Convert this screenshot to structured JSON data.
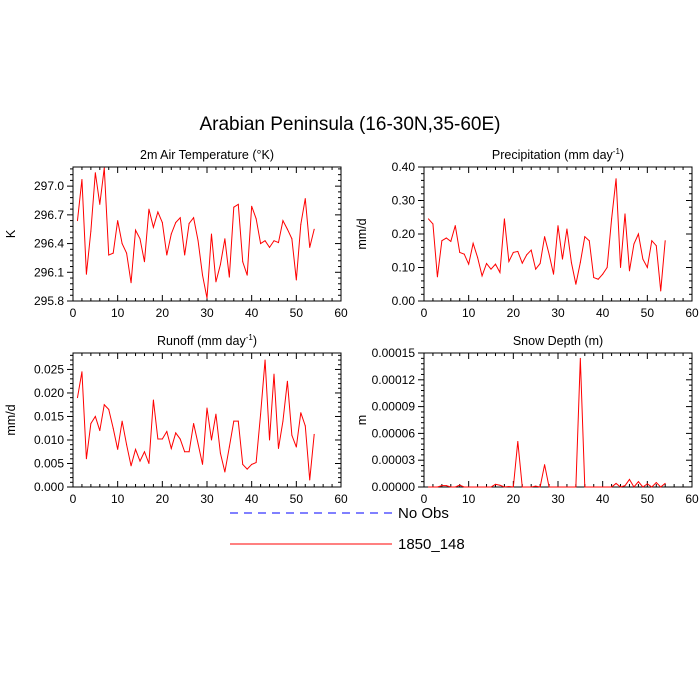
{
  "figure": {
    "title": "Arabian Peninsula (16-30N,35-60E)"
  },
  "colors": {
    "model": "#ff0000",
    "obs": "#0000ff",
    "axis": "#000000"
  },
  "legend": [
    {
      "label": "No Obs",
      "style": "dashed",
      "color": "#0000ff"
    },
    {
      "label": "1850_148",
      "style": "solid",
      "color": "#ff0000"
    }
  ],
  "chart_data": [
    {
      "type": "line",
      "title": "2m Air Temperature (°K)",
      "ylabel": "K",
      "xlim": [
        0,
        60
      ],
      "ylim": [
        295.8,
        297.2
      ],
      "xticks": [
        0,
        10,
        20,
        30,
        40,
        50,
        60
      ],
      "yticks": [
        "295.8",
        "296.1",
        "296.4",
        "296.7",
        "297.0"
      ],
      "legend": "bottom",
      "series": [
        {
          "name": "1850_148",
          "x": [
            1,
            2,
            3,
            4,
            5,
            6,
            7,
            8,
            9,
            10,
            11,
            12,
            13,
            14,
            15,
            16,
            17,
            18,
            19,
            20,
            21,
            22,
            23,
            24,
            25,
            26,
            27,
            28,
            29,
            30,
            31,
            32,
            33,
            34,
            35,
            36,
            37,
            38,
            39,
            40,
            41,
            42,
            43,
            44,
            45,
            46,
            47,
            48,
            49,
            50,
            51,
            52,
            53,
            54
          ],
          "values": [
            296.64,
            297.07,
            296.08,
            296.53,
            297.14,
            296.81,
            297.19,
            296.28,
            296.3,
            296.64,
            296.4,
            296.3,
            295.99,
            296.54,
            296.45,
            296.21,
            296.76,
            296.57,
            296.73,
            296.62,
            296.28,
            296.5,
            296.62,
            296.67,
            296.28,
            296.61,
            296.67,
            296.43,
            296.07,
            295.83,
            296.5,
            296.0,
            296.18,
            296.45,
            296.05,
            296.78,
            296.81,
            296.21,
            296.07,
            296.79,
            296.66,
            296.4,
            296.43,
            296.36,
            296.43,
            296.41,
            296.64,
            296.55,
            296.45,
            296.02,
            296.6,
            296.87,
            296.36,
            296.55
          ]
        }
      ]
    },
    {
      "type": "line",
      "title": "Precipitation (mm day",
      "title_sup": "-1",
      "title_end": ")",
      "ylabel": "mm/d",
      "xlim": [
        0,
        60
      ],
      "ylim": [
        0,
        0.4
      ],
      "xticks": [
        0,
        10,
        20,
        30,
        40,
        50,
        60
      ],
      "yticks": [
        "0.00",
        "0.10",
        "0.20",
        "0.30",
        "0.40"
      ],
      "series": [
        {
          "name": "1850_148",
          "x": [
            1,
            2,
            3,
            4,
            5,
            6,
            7,
            8,
            9,
            10,
            11,
            12,
            13,
            14,
            15,
            16,
            17,
            18,
            19,
            20,
            21,
            22,
            23,
            24,
            25,
            26,
            27,
            28,
            29,
            30,
            31,
            32,
            33,
            34,
            35,
            36,
            37,
            38,
            39,
            40,
            41,
            42,
            43,
            44,
            45,
            46,
            47,
            48,
            49,
            50,
            51,
            52,
            53,
            54
          ],
          "values": [
            0.245,
            0.23,
            0.072,
            0.18,
            0.188,
            0.178,
            0.225,
            0.145,
            0.14,
            0.11,
            0.172,
            0.13,
            0.075,
            0.112,
            0.095,
            0.11,
            0.085,
            0.245,
            0.118,
            0.145,
            0.148,
            0.113,
            0.138,
            0.152,
            0.095,
            0.112,
            0.192,
            0.14,
            0.08,
            0.225,
            0.125,
            0.215,
            0.115,
            0.05,
            0.115,
            0.192,
            0.18,
            0.07,
            0.065,
            0.08,
            0.1,
            0.245,
            0.365,
            0.1,
            0.26,
            0.09,
            0.17,
            0.2,
            0.125,
            0.1,
            0.18,
            0.165,
            0.03,
            0.18
          ]
        }
      ]
    },
    {
      "type": "line",
      "title": "Runoff (mm day",
      "title_sup": "-1",
      "title_end": ")",
      "ylabel": "mm/d",
      "xlim": [
        0,
        60
      ],
      "ylim": [
        0,
        0.0285
      ],
      "xticks": [
        0,
        10,
        20,
        30,
        40,
        50,
        60
      ],
      "yticks": [
        "0.000",
        "0.005",
        "0.010",
        "0.015",
        "0.020",
        "0.025"
      ],
      "series": [
        {
          "name": "1850_148",
          "x": [
            1,
            2,
            3,
            4,
            5,
            6,
            7,
            8,
            9,
            10,
            11,
            12,
            13,
            14,
            15,
            16,
            17,
            18,
            19,
            20,
            21,
            22,
            23,
            24,
            25,
            26,
            27,
            28,
            29,
            30,
            31,
            32,
            33,
            34,
            35,
            36,
            37,
            38,
            39,
            40,
            41,
            42,
            43,
            44,
            45,
            46,
            47,
            48,
            49,
            50,
            51,
            52,
            53,
            54
          ],
          "values": [
            0.019,
            0.0245,
            0.006,
            0.0135,
            0.015,
            0.012,
            0.0175,
            0.0165,
            0.0125,
            0.008,
            0.014,
            0.009,
            0.0045,
            0.008,
            0.0055,
            0.0075,
            0.005,
            0.0185,
            0.0102,
            0.0102,
            0.0118,
            0.0082,
            0.0115,
            0.0102,
            0.0075,
            0.0075,
            0.0135,
            0.0092,
            0.0048,
            0.0168,
            0.01,
            0.0155,
            0.0072,
            0.0032,
            0.0085,
            0.014,
            0.014,
            0.0048,
            0.0038,
            0.0048,
            0.0052,
            0.0155,
            0.027,
            0.01,
            0.024,
            0.0082,
            0.014,
            0.0225,
            0.011,
            0.0085,
            0.0158,
            0.013,
            0.0015,
            0.0112
          ]
        }
      ]
    },
    {
      "type": "line",
      "title": "Snow Depth (m)",
      "ylabel": "m",
      "xlim": [
        0,
        60
      ],
      "ylim": [
        0,
        0.00015
      ],
      "xticks": [
        0,
        10,
        20,
        30,
        40,
        50,
        60
      ],
      "yticks": [
        "0.00000",
        "0.00003",
        "0.00006",
        "0.00009",
        "0.00012",
        "0.00015"
      ],
      "series": [
        {
          "name": "1850_148",
          "x": [
            1,
            2,
            3,
            4,
            5,
            6,
            7,
            8,
            9,
            10,
            11,
            12,
            13,
            14,
            15,
            16,
            17,
            18,
            19,
            20,
            21,
            22,
            23,
            24,
            25,
            26,
            27,
            28,
            29,
            30,
            31,
            32,
            33,
            34,
            35,
            36,
            37,
            38,
            39,
            40,
            41,
            42,
            43,
            44,
            45,
            46,
            47,
            48,
            49,
            50,
            51,
            52,
            53,
            54
          ],
          "values": [
            0,
            0,
            0,
            1.5e-06,
            1.5e-06,
            0,
            0,
            2e-06,
            0,
            0,
            0,
            0,
            0,
            0,
            0,
            3e-06,
            2e-06,
            0,
            5e-07,
            0,
            5.1e-05,
            0,
            0,
            0,
            1e-06,
            0,
            2.5e-05,
            0,
            0,
            0,
            0,
            0,
            0,
            0,
            0.000144,
            0,
            0,
            0,
            0,
            0,
            0,
            0,
            4e-06,
            0,
            1.5e-06,
            8.5e-06,
            0,
            6e-06,
            0,
            3.5e-06,
            0,
            5e-06,
            0,
            4e-06
          ]
        }
      ]
    }
  ]
}
